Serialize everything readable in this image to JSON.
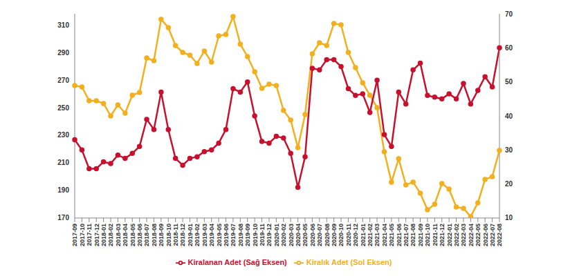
{
  "chart_data": {
    "type": "line",
    "categories": [
      "2017-09",
      "2017-10",
      "2017-11",
      "2017-12",
      "2018-01",
      "2018-02",
      "2018-03",
      "2018-04",
      "2018-05",
      "2018-06",
      "2018-07",
      "2018-08",
      "2018-09",
      "2018-10",
      "2018-11",
      "2018-12",
      "2019-01",
      "2019-02",
      "2019-03",
      "2019-04",
      "2019-05",
      "2019-06",
      "2019-07",
      "2019-08",
      "2019-09",
      "2019-10",
      "2019-11",
      "2019-12",
      "2020-01",
      "2020-02",
      "2020-03",
      "2020-04",
      "2020-05",
      "2020-06",
      "2020-07",
      "2020-08",
      "2020-09",
      "2020-10",
      "2020-11",
      "2020-12",
      "2021-01",
      "2021-02",
      "2021-03",
      "2021-04",
      "2021-05",
      "2021-06",
      "2021-07",
      "2021-08",
      "2021-09",
      "2021-10",
      "2021-11",
      "2021-12",
      "2022-01",
      "2022-02",
      "2022-03",
      "2022-04",
      "2022-05",
      "2022-06",
      "2022-07",
      "2022-08"
    ],
    "series": [
      {
        "name": "Kiralık Adet (Sol Eksen)",
        "color": "#f2b01e",
        "axis": "y",
        "marker": "circle",
        "values": [
          266,
          265,
          255,
          255,
          253,
          244,
          252,
          246,
          259,
          261,
          286,
          284,
          314,
          308,
          295,
          290,
          288,
          282,
          291,
          283,
          302,
          303,
          316,
          296,
          287,
          276,
          264,
          267,
          266,
          248,
          241,
          221,
          245,
          289,
          297,
          295,
          311,
          310,
          290,
          279,
          268,
          259,
          250,
          218,
          196,
          213,
          194,
          196,
          188,
          176,
          180,
          195,
          191,
          178,
          177,
          171,
          181,
          198,
          200,
          219
        ]
      },
      {
        "name": "Kiralanan Adet (Sağ Eksen)",
        "color": "#c8102e",
        "axis": "y2",
        "marker": "circle",
        "values": [
          33,
          30,
          24.5,
          24.5,
          26.5,
          26,
          28.5,
          27.5,
          29,
          31,
          39,
          36,
          47,
          36,
          27.5,
          25.5,
          27.5,
          28,
          29.5,
          30,
          32,
          36,
          48,
          47,
          50,
          40,
          32.5,
          32,
          34,
          33.5,
          29,
          19,
          28,
          54,
          53.5,
          56.5,
          56.5,
          54.5,
          48,
          46,
          46.5,
          41,
          50.5,
          34.5,
          31,
          47,
          43.5,
          53.5,
          55.5,
          46,
          45.5,
          45,
          46.5,
          45,
          49.5,
          43.5,
          47.5,
          51.5,
          48.5,
          60
        ]
      }
    ],
    "ylim": [
      170,
      318
    ],
    "yticks": [
      170,
      190,
      210,
      230,
      250,
      270,
      290,
      310
    ],
    "y2lim": [
      10,
      70
    ],
    "y2ticks": [
      10,
      20,
      30,
      40,
      50,
      60,
      70
    ],
    "grid": false,
    "legend": "bottom"
  }
}
